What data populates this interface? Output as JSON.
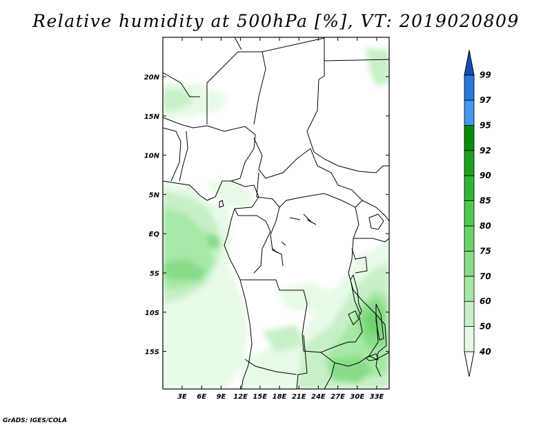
{
  "title": "Relative humidity at 500hPa [%], VT: 2019020809",
  "credit": "GrADS: IGES/COLA",
  "lat_labels": [
    "20N",
    "15N",
    "10N",
    "5N",
    "EQ",
    "5S",
    "10S",
    "15S"
  ],
  "lon_labels": [
    "3E",
    "6E",
    "9E",
    "12E",
    "15E",
    "18E",
    "21E",
    "24E",
    "27E",
    "30E",
    "33E"
  ],
  "colorbar": {
    "levels": [
      "40",
      "50",
      "60",
      "70",
      "75",
      "80",
      "85",
      "90",
      "92",
      "95",
      "97",
      "99"
    ],
    "colors": [
      "#ffffff",
      "#e6fae6",
      "#c8f0c8",
      "#a6e8a6",
      "#88dc88",
      "#6cd26c",
      "#50c850",
      "#34b434",
      "#1ea01e",
      "#0a8c0a",
      "#4696f0",
      "#2878dc",
      "#1450b4"
    ]
  }
}
